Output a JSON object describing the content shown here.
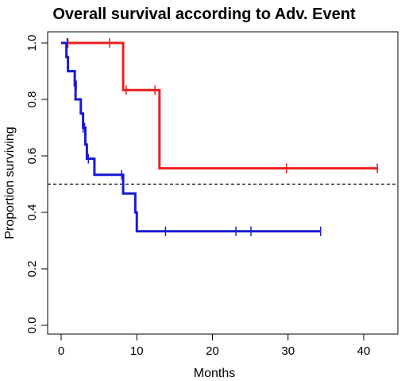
{
  "chart_data": {
    "type": "line",
    "title": "Overall survival according to Adv. Event",
    "xlabel": "Months",
    "ylabel": "Proportion surviving",
    "xlim": [
      0,
      45
    ],
    "ylim": [
      0,
      1.0
    ],
    "xticks": [
      0,
      10,
      20,
      30,
      40
    ],
    "yticks": [
      0.0,
      0.2,
      0.4,
      0.6,
      0.8,
      1.0
    ],
    "reference_line": {
      "y": 0.5,
      "style": "dashed"
    },
    "grid": false,
    "series": [
      {
        "color": "#e8201f",
        "steps": [
          [
            0,
            1.0
          ],
          [
            8.2,
            0.833
          ],
          [
            13.0,
            0.556
          ],
          [
            41.8,
            0.556
          ]
        ],
        "censored": [
          [
            0.9,
            1.0
          ],
          [
            6.4,
            1.0
          ],
          [
            8.6,
            0.833
          ],
          [
            12.4,
            0.833
          ],
          [
            29.8,
            0.556
          ],
          [
            41.8,
            0.556
          ]
        ]
      },
      {
        "color": "#1a1ad6",
        "steps": [
          [
            0,
            1.0
          ],
          [
            0.7,
            0.95
          ],
          [
            0.9,
            0.9
          ],
          [
            1.8,
            0.85
          ],
          [
            1.9,
            0.8
          ],
          [
            2.6,
            0.75
          ],
          [
            2.9,
            0.7
          ],
          [
            3.2,
            0.64
          ],
          [
            3.4,
            0.59
          ],
          [
            4.4,
            0.533
          ],
          [
            8.2,
            0.467
          ],
          [
            9.8,
            0.4
          ],
          [
            10.0,
            0.333
          ],
          [
            34.3,
            0.333
          ]
        ],
        "censored": [
          [
            0.8,
            1.0
          ],
          [
            2.0,
            0.85
          ],
          [
            2.9,
            0.7
          ],
          [
            3.1,
            0.7
          ],
          [
            3.6,
            0.59
          ],
          [
            8.0,
            0.533
          ],
          [
            13.8,
            0.333
          ],
          [
            23.1,
            0.333
          ],
          [
            25.1,
            0.333
          ],
          [
            34.3,
            0.333
          ]
        ]
      }
    ]
  }
}
